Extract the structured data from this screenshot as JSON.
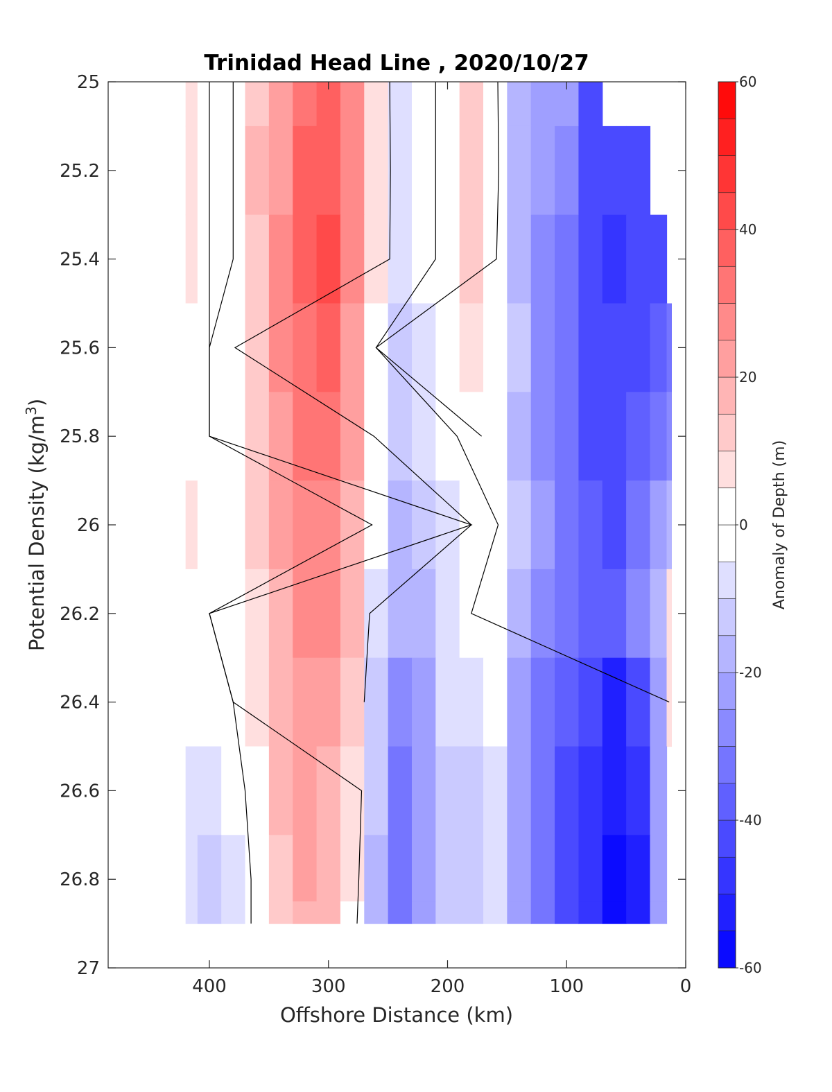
{
  "chart_data": {
    "type": "heatmap",
    "subtype": "filled-contour",
    "title": "Trinidad Head Line , 2020/10/27",
    "xlabel": "Offshore Distance (km)",
    "ylabel_main": "Potential Density (kg/m",
    "ylabel_sup": "3",
    "ylabel_close": ")",
    "xlim": [
      485,
      0
    ],
    "ylim": [
      25,
      27
    ],
    "x_reversed": true,
    "y_reversed": true,
    "xticks": [
      400,
      300,
      200,
      100,
      0
    ],
    "xtick_labels": [
      "400",
      "300",
      "200",
      "100",
      "0"
    ],
    "yticks": [
      25,
      25.2,
      25.4,
      25.6,
      25.8,
      26,
      26.2,
      26.4,
      26.6,
      26.8,
      27
    ],
    "ytick_labels": [
      "25",
      "25.2",
      "25.4",
      "25.6",
      "25.8",
      "26",
      "26.2",
      "26.4",
      "26.6",
      "26.8",
      "27"
    ],
    "colorbar": {
      "label": "Anomaly of Depth (m)",
      "range": [
        -60,
        60
      ],
      "step": 5,
      "ticks": [
        60,
        40,
        20,
        0,
        -20,
        -40,
        -60
      ],
      "tick_labels": [
        "60",
        "40",
        "20",
        "0",
        "-20",
        "-40",
        "-60"
      ],
      "colormap": "blue-white-red",
      "neg_color": "#0000ff",
      "zero_color": "#ffffff",
      "pos_color": "#ff0000"
    },
    "grid": false,
    "zero_contour": true,
    "data_extent": {
      "x_min": 12,
      "x_max": 420,
      "y_min": 25,
      "y_max": 26.9
    },
    "stations_km": [
      420,
      400,
      380,
      360,
      340,
      320,
      300,
      280,
      260,
      240,
      220,
      200,
      180,
      160,
      140,
      120,
      100,
      80,
      60,
      40,
      20,
      12
    ],
    "density_levels": [
      25.0,
      25.2,
      25.4,
      25.6,
      25.8,
      26.0,
      26.2,
      26.4,
      26.6,
      26.8,
      26.9
    ],
    "anomaly_m": [
      [
        7,
        0,
        0,
        13,
        23,
        33,
        35,
        25,
        8,
        -6,
        -4,
        4,
        10,
        2,
        -16,
        -22,
        -24,
        -40,
        null,
        null,
        null,
        null
      ],
      [
        7,
        0,
        0,
        15,
        24,
        36,
        37,
        27,
        9,
        -6,
        -4,
        4,
        14,
        3,
        -17,
        -24,
        -28,
        -42,
        -44,
        -43,
        null,
        null
      ],
      [
        5,
        0,
        0,
        14,
        26,
        39,
        40,
        27,
        8,
        -6,
        -4,
        4,
        12,
        1,
        -17,
        -25,
        -32,
        -43,
        -45,
        -44,
        -40,
        null
      ],
      [
        4,
        0,
        -1,
        12,
        25,
        34,
        35,
        24,
        0,
        -12,
        -5,
        2,
        8,
        -2,
        -14,
        -26,
        -34,
        -42,
        -44,
        -40,
        -35,
        -30
      ],
      [
        3,
        0,
        2,
        11,
        24,
        30,
        30,
        20,
        -2,
        -14,
        -8,
        -2,
        3,
        -4,
        -16,
        -26,
        -34,
        -40,
        -42,
        -36,
        -30,
        -28
      ],
      [
        6,
        2,
        4,
        11,
        22,
        28,
        29,
        19,
        -4,
        -15,
        -11,
        -5,
        0,
        2,
        -14,
        -24,
        -32,
        -38,
        -40,
        -30,
        -22,
        -16
      ],
      [
        2,
        0,
        2,
        8,
        19,
        26,
        26,
        16,
        -6,
        -18,
        -16,
        -6,
        0,
        -4,
        -16,
        -26,
        -34,
        -38,
        -39,
        -26,
        -15,
        8
      ],
      [
        -4,
        -2,
        0,
        6,
        17,
        23,
        22,
        12,
        -12,
        -26,
        -20,
        -9,
        -8,
        -4,
        -20,
        -30,
        -38,
        -44,
        -50,
        -42,
        -20,
        6
      ],
      [
        -6,
        -8,
        -4,
        4,
        15,
        21,
        19,
        9,
        -14,
        -30,
        -22,
        -12,
        -12,
        -5,
        -22,
        -32,
        -40,
        -46,
        -54,
        -48,
        -22,
        null
      ],
      [
        -8,
        -10,
        -6,
        2,
        14,
        20,
        17,
        6,
        -16,
        -32,
        -24,
        -14,
        -14,
        -6,
        -22,
        -32,
        -40,
        -48,
        -56,
        -50,
        -24,
        null
      ],
      [
        -8,
        -10,
        -6,
        2,
        12,
        18,
        15,
        4,
        -16,
        -32,
        -24,
        -14,
        -14,
        -6,
        -22,
        -32,
        -40,
        -48,
        -56,
        -50,
        -24,
        null
      ]
    ]
  }
}
